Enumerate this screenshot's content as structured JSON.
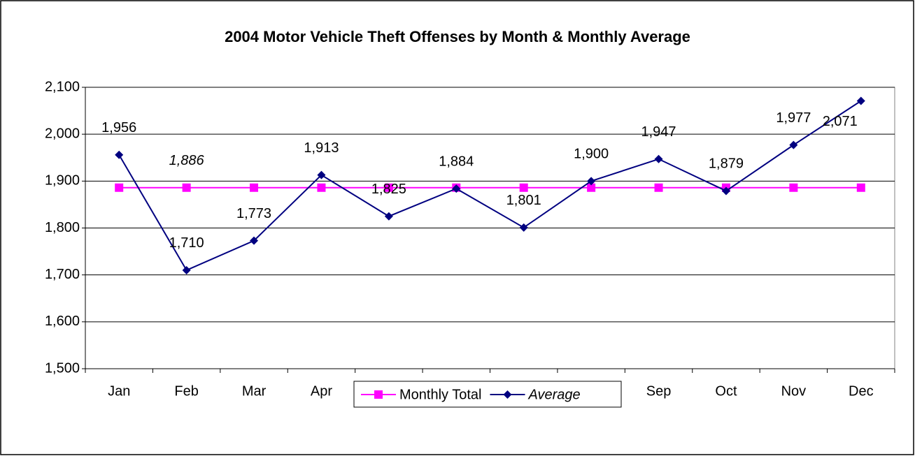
{
  "chart_data": {
    "type": "line",
    "title": "2004 Motor Vehicle Theft Offenses by Month & Monthly Average",
    "categories": [
      "Jan",
      "Feb",
      "Mar",
      "Apr",
      "May",
      "Jun",
      "Jul",
      "Aug",
      "Sep",
      "Oct",
      "Nov",
      "Dec"
    ],
    "series": [
      {
        "name": "Monthly Total",
        "color": "#ff00ff",
        "marker": "square",
        "values": [
          1886,
          1886,
          1886,
          1886,
          1886,
          1886,
          1886,
          1886,
          1886,
          1886,
          1886,
          1886
        ],
        "value_labels": [
          null,
          "1,886",
          null,
          null,
          null,
          null,
          null,
          null,
          null,
          null,
          null,
          null
        ]
      },
      {
        "name": "Average",
        "color": "#000080",
        "marker": "diamond",
        "values": [
          1956,
          1710,
          1773,
          1913,
          1825,
          1884,
          1801,
          1900,
          1947,
          1879,
          1977,
          2071
        ],
        "value_labels": [
          "1,956",
          "1,710",
          "1,773",
          "1,913",
          "1,825",
          "1,884",
          "1,801",
          "1,900",
          "1,947",
          "1,879",
          "1,977",
          "2,071"
        ]
      }
    ],
    "ylim": [
      1500,
      2100
    ],
    "yticks": [
      {
        "value": 1500,
        "label": "1,500"
      },
      {
        "value": 1600,
        "label": "1,600"
      },
      {
        "value": 1700,
        "label": "1,700"
      },
      {
        "value": 1800,
        "label": "1,800"
      },
      {
        "value": 1900,
        "label": "1,900"
      },
      {
        "value": 2000,
        "label": "2,000"
      },
      {
        "value": 2100,
        "label": "2,100"
      }
    ],
    "grid": true,
    "legend": "bottom"
  }
}
